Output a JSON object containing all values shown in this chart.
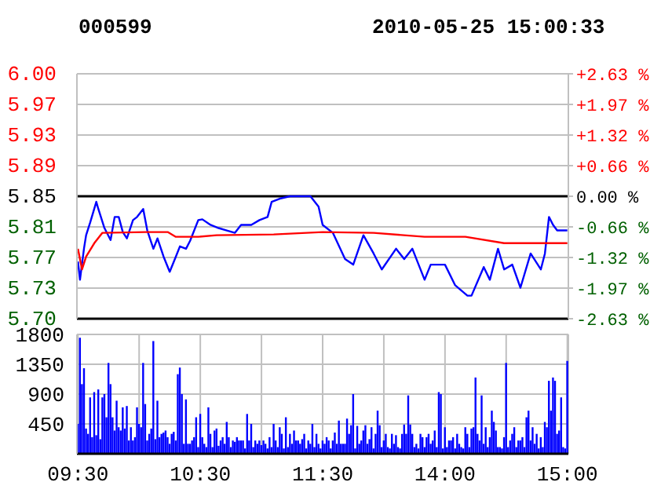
{
  "chart_data": [
    {
      "type": "line",
      "title": "000599",
      "subtitle": "2010-05-25 15:00:33",
      "grid": true,
      "tick_labels": "y",
      "marker": "none",
      "line_style": "solid",
      "categories": [
        null,
        null,
        null,
        null,
        null,
        null,
        null,
        null,
        null,
        null,
        null,
        null,
        null,
        null,
        null,
        null,
        null,
        null,
        null,
        null,
        null,
        null,
        null,
        null,
        null,
        null,
        null,
        null,
        null,
        null,
        null,
        null,
        null,
        null,
        null,
        null,
        null,
        null,
        null,
        null,
        null,
        null,
        null,
        null,
        null,
        null,
        null,
        null,
        null,
        null,
        null,
        null,
        null,
        null,
        null,
        null,
        null,
        null,
        null,
        null,
        null,
        null,
        null,
        null,
        null,
        null,
        null,
        null,
        null,
        null,
        null,
        null,
        null,
        null,
        null,
        null,
        null,
        null,
        null,
        null,
        null,
        null,
        null,
        null,
        null,
        null,
        null,
        null,
        null,
        null,
        null,
        null,
        null,
        null,
        null,
        null,
        null,
        null,
        null,
        null,
        null,
        null,
        null,
        null,
        null,
        null,
        null,
        null,
        null,
        null,
        null,
        null,
        null,
        null,
        null,
        null,
        null,
        null,
        null,
        null,
        null,
        null,
        null,
        null,
        null,
        null,
        null,
        null,
        null,
        null,
        null,
        null,
        null,
        null,
        null,
        null,
        null,
        null,
        null,
        null,
        null,
        null,
        null,
        null,
        null,
        null,
        null,
        null,
        null,
        null,
        null,
        null,
        null,
        null,
        null,
        null,
        null,
        null,
        null,
        null,
        null,
        null,
        null,
        null,
        null,
        null,
        null,
        null,
        null,
        null,
        null,
        null,
        null,
        null,
        null,
        null,
        null,
        null,
        null,
        null,
        null,
        null,
        null,
        null,
        null,
        null,
        null,
        null,
        null,
        null,
        null,
        null,
        null,
        null,
        null,
        null,
        null,
        null,
        null,
        null,
        null,
        null,
        null,
        null,
        null,
        null,
        null,
        null,
        null,
        null,
        null,
        null,
        null,
        null,
        null,
        null,
        null,
        null,
        null,
        null,
        null,
        null,
        null,
        null,
        null,
        null,
        null,
        null,
        null,
        null,
        null,
        null,
        null,
        null,
        null,
        null,
        null,
        null,
        null,
        null,
        null
      ],
      "ylim": [
        5.696,
        6.004
      ],
      "yticks": [
        {
          "value": 5.696,
          "label": "5.70"
        },
        {
          "value": 5.7345,
          "label": "5.73"
        },
        {
          "value": 5.773,
          "label": "5.77"
        },
        {
          "value": 5.8115,
          "label": "5.81"
        },
        {
          "value": 5.85,
          "label": "5.85"
        },
        {
          "value": 5.8885,
          "label": "5.89"
        },
        {
          "value": 5.927,
          "label": "5.93"
        },
        {
          "value": 5.9655,
          "label": "5.97"
        },
        {
          "value": 6.004,
          "label": "6.00"
        }
      ],
      "y2lim": [
        -2.632,
        2.632
      ],
      "y2ticks": [
        {
          "value": -2.632,
          "label": "-2.63 %"
        },
        {
          "value": -1.974,
          "label": "-1.97 %"
        },
        {
          "value": -1.316,
          "label": "-1.32 %"
        },
        {
          "value": -0.658,
          "label": "-0.66 %"
        },
        {
          "value": 0,
          "label": "0.00 %"
        },
        {
          "value": 0.658,
          "label": "+0.66 %"
        },
        {
          "value": 1.316,
          "label": "+1.32 %"
        },
        {
          "value": 1.974,
          "label": "+1.97 %"
        },
        {
          "value": 2.632,
          "label": "+2.63 %"
        }
      ],
      "ref_lines": [
        {
          "axis": "y",
          "value": 5.85,
          "color": "#000000"
        }
      ],
      "series": [
        {
          "color": "#0000ff",
          "values": [
            5.768,
            5.745,
            null,
            5.785,
            5.801,
            null,
            5.817,
            null,
            null,
            5.843,
            5.834,
            null,
            null,
            5.81,
            null,
            null,
            5.795,
            null,
            5.824,
            null,
            5.824,
            null,
            5.805,
            null,
            5.797,
            null,
            null,
            5.82,
            null,
            5.824,
            null,
            null,
            5.834,
            null,
            5.807,
            null,
            null,
            5.784,
            null,
            5.797,
            null,
            null,
            5.774,
            null,
            null,
            5.755,
            null,
            null,
            5.774,
            null,
            5.787,
            null,
            null,
            5.784,
            null,
            5.794,
            null,
            null,
            null,
            5.82,
            null,
            5.821,
            null,
            null,
            null,
            5.814,
            null,
            null,
            null,
            5.81,
            null,
            null,
            null,
            5.807,
            null,
            null,
            null,
            5.804,
            null,
            null,
            5.814,
            null,
            null,
            null,
            null,
            5.814,
            null,
            null,
            null,
            5.82,
            null,
            null,
            null,
            5.824,
            null,
            5.843,
            null,
            null,
            null,
            5.847,
            null,
            null,
            null,
            null,
            5.85,
            null,
            null,
            null,
            null,
            null,
            null,
            null,
            null,
            null,
            5.85,
            null,
            null,
            null,
            5.837,
            null,
            5.814,
            null,
            null,
            null,
            null,
            5.804,
            null,
            null,
            null,
            null,
            null,
            5.771,
            null,
            null,
            null,
            5.764,
            null,
            null,
            null,
            null,
            5.801,
            null,
            null,
            null,
            null,
            5.778,
            null,
            null,
            null,
            5.758,
            null,
            null,
            null,
            null,
            null,
            null,
            5.784,
            null,
            null,
            null,
            5.771,
            null,
            null,
            null,
            5.784,
            null,
            null,
            null,
            null,
            null,
            5.745,
            null,
            null,
            5.764,
            null,
            null,
            null,
            null,
            null,
            null,
            5.764,
            null,
            null,
            null,
            null,
            5.738,
            null,
            null,
            null,
            null,
            null,
            5.725,
            null,
            5.725,
            null,
            null,
            null,
            null,
            null,
            5.761,
            null,
            null,
            5.745,
            null,
            null,
            null,
            5.784,
            null,
            null,
            5.758,
            null,
            null,
            null,
            5.764,
            null,
            null,
            null,
            5.735,
            null,
            null,
            null,
            null,
            5.778,
            null,
            null,
            null,
            null,
            5.758,
            null,
            5.778,
            null,
            5.824,
            null,
            5.814,
            null,
            5.807,
            null,
            null,
            null,
            null,
            5.807
          ]
        },
        {
          "color": "#ff0000",
          "values": [
            5.784,
            null,
            5.758,
            null,
            5.774,
            null,
            null,
            null,
            5.791,
            null,
            null,
            null,
            5.804,
            null,
            null,
            null,
            null,
            null,
            null,
            null,
            null,
            null,
            null,
            null,
            null,
            null,
            null,
            null,
            null,
            null,
            null,
            null,
            null,
            5.805,
            null,
            null,
            null,
            null,
            null,
            null,
            null,
            null,
            null,
            null,
            5.805,
            null,
            null,
            null,
            5.799,
            null,
            null,
            null,
            null,
            null,
            null,
            null,
            null,
            null,
            null,
            5.799,
            null,
            null,
            null,
            null,
            null,
            null,
            null,
            null,
            5.801,
            null,
            null,
            null,
            null,
            null,
            null,
            null,
            null,
            null,
            null,
            null,
            null,
            null,
            null,
            null,
            null,
            null,
            null,
            null,
            null,
            null,
            null,
            null,
            null,
            null,
            null,
            null,
            5.802,
            null,
            null,
            null,
            null,
            null,
            null,
            null,
            null,
            null,
            null,
            null,
            null,
            null,
            null,
            null,
            null,
            null,
            null,
            null,
            null,
            null,
            null,
            null,
            5.805,
            null,
            null,
            null,
            null,
            null,
            null,
            null,
            null,
            null,
            null,
            null,
            null,
            null,
            null,
            null,
            null,
            null,
            null,
            null,
            null,
            null,
            null,
            null,
            null,
            5.804,
            null,
            null,
            null,
            null,
            null,
            null,
            null,
            null,
            null,
            null,
            null,
            null,
            null,
            null,
            null,
            null,
            null,
            null,
            null,
            null,
            null,
            null,
            null,
            null,
            5.799,
            null,
            null,
            null,
            null,
            null,
            null,
            null,
            null,
            null,
            null,
            null,
            null,
            null,
            null,
            null,
            null,
            null,
            null,
            null,
            5.799,
            null,
            null,
            null,
            null,
            null,
            null,
            null,
            null,
            null,
            null,
            null,
            null,
            null,
            null,
            null,
            null,
            null,
            null,
            5.791,
            null,
            null,
            null,
            null,
            null,
            null,
            null,
            null,
            null,
            null,
            null,
            null,
            null,
            null,
            null,
            null,
            null,
            null,
            null,
            null,
            null,
            null,
            null,
            null,
            null,
            null,
            null,
            null,
            null,
            null,
            5.791
          ]
        }
      ]
    },
    {
      "type": "bar",
      "grid": true,
      "color": "#0000ff",
      "categories": [
        "09:30",
        null,
        null,
        null,
        null,
        null,
        null,
        null,
        null,
        null,
        null,
        null,
        null,
        null,
        null,
        null,
        null,
        null,
        null,
        null,
        null,
        null,
        null,
        null,
        null,
        null,
        null,
        null,
        null,
        null,
        null,
        null,
        null,
        null,
        null,
        null,
        null,
        null,
        null,
        null,
        null,
        null,
        null,
        null,
        null,
        null,
        null,
        null,
        null,
        null,
        null,
        null,
        null,
        null,
        null,
        null,
        null,
        null,
        null,
        null,
        "10:30",
        null,
        null,
        null,
        null,
        null,
        null,
        null,
        null,
        null,
        null,
        null,
        null,
        null,
        null,
        null,
        null,
        null,
        null,
        null,
        null,
        null,
        null,
        null,
        null,
        null,
        null,
        null,
        null,
        null,
        null,
        null,
        null,
        null,
        null,
        null,
        null,
        null,
        null,
        null,
        null,
        null,
        null,
        null,
        null,
        null,
        null,
        null,
        null,
        null,
        null,
        null,
        null,
        null,
        null,
        null,
        null,
        null,
        null,
        null,
        "11:30",
        null,
        null,
        null,
        null,
        null,
        null,
        null,
        null,
        null,
        null,
        null,
        null,
        null,
        null,
        null,
        null,
        null,
        null,
        null,
        null,
        null,
        null,
        null,
        null,
        null,
        null,
        null,
        null,
        null,
        null,
        null,
        null,
        null,
        null,
        null,
        null,
        null,
        null,
        null,
        null,
        null,
        null,
        null,
        null,
        null,
        null,
        null,
        null,
        null,
        null,
        null,
        null,
        null,
        null,
        null,
        null,
        null,
        null,
        null,
        "14:00",
        null,
        null,
        null,
        null,
        null,
        null,
        null,
        null,
        null,
        null,
        null,
        null,
        null,
        null,
        null,
        null,
        null,
        null,
        null,
        null,
        null,
        null,
        null,
        null,
        null,
        null,
        null,
        null,
        null,
        null,
        null,
        null,
        null,
        null,
        null,
        null,
        null,
        null,
        null,
        null,
        null,
        null,
        null,
        null,
        null,
        null,
        null,
        null,
        null,
        null,
        null,
        null,
        null,
        null,
        null,
        null,
        null,
        null,
        null,
        "15:00"
      ],
      "ylim": [
        0,
        1800
      ],
      "yticks": [
        450,
        900,
        1350,
        1800
      ],
      "values": [
        450,
        1750,
        1050,
        1290,
        380,
        300,
        850,
        250,
        930,
        280,
        970,
        220,
        850,
        900,
        550,
        1370,
        1050,
        550,
        350,
        800,
        400,
        350,
        700,
        380,
        720,
        200,
        400,
        200,
        250,
        700,
        450,
        400,
        1370,
        750,
        200,
        300,
        380,
        1700,
        220,
        800,
        250,
        300,
        320,
        350,
        250,
        150,
        300,
        330,
        200,
        1200,
        1300,
        900,
        150,
        820,
        150,
        150,
        200,
        250,
        550,
        100,
        600,
        250,
        150,
        100,
        700,
        300,
        100,
        350,
        380,
        120,
        200,
        250,
        150,
        480,
        250,
        100,
        200,
        180,
        250,
        200,
        200,
        200,
        80,
        600,
        200,
        450,
        100,
        200,
        150,
        200,
        130,
        200,
        150,
        80,
        250,
        100,
        450,
        200,
        100,
        400,
        300,
        80,
        550,
        100,
        300,
        150,
        350,
        200,
        200,
        150,
        220,
        300,
        80,
        200,
        150,
        450,
        100,
        300,
        150,
        80,
        200,
        150,
        250,
        200,
        80,
        200,
        320,
        150,
        500,
        150,
        150,
        150,
        530,
        300,
        430,
        900,
        80,
        420,
        150,
        200,
        350,
        430,
        150,
        220,
        400,
        80,
        300,
        650,
        430,
        100,
        200,
        300,
        100,
        80,
        300,
        150,
        280,
        100,
        80,
        300,
        440,
        300,
        880,
        440,
        300,
        100,
        150,
        80,
        300,
        250,
        100,
        250,
        300,
        150,
        200,
        350,
        100,
        930,
        900,
        80,
        400,
        100,
        200,
        200,
        250,
        80,
        300,
        150,
        100,
        80,
        400,
        300,
        100,
        380,
        400,
        1150,
        300,
        200,
        880,
        150,
        400,
        100,
        250,
        650,
        480,
        350,
        100,
        100,
        80,
        250,
        1370,
        100,
        200,
        300,
        400,
        100,
        200,
        200,
        250,
        100,
        550,
        650,
        200,
        400,
        150,
        300,
        80,
        250,
        100,
        480,
        400,
        1100,
        650,
        1150,
        1100,
        300,
        350,
        850,
        100,
        80,
        1400
      ]
    }
  ]
}
